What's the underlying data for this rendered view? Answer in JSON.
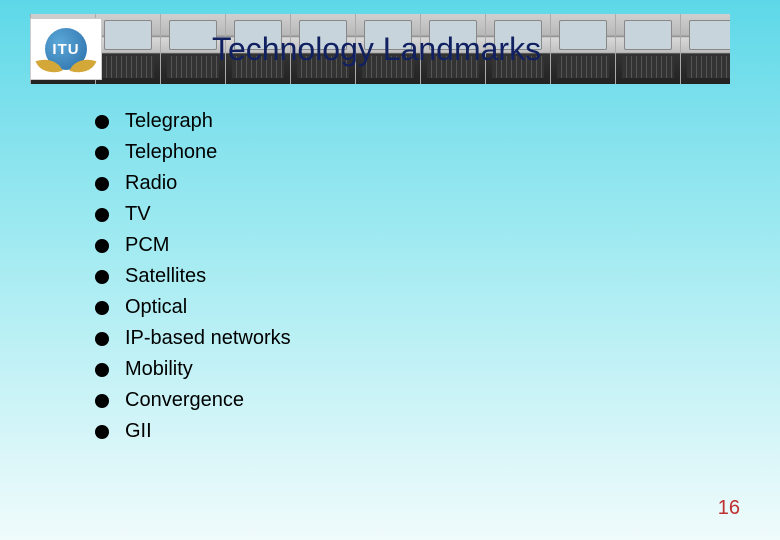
{
  "logo": {
    "text": "ITU"
  },
  "title": "Technology Landmarks",
  "bullets": [
    "Telegraph",
    "Telephone",
    "Radio",
    "TV",
    "PCM",
    "Satellites",
    "Optical",
    "IP-based networks",
    "Mobility",
    "Convergence",
    "GII"
  ],
  "page_number": "16",
  "styling": {
    "background_gradient": [
      "#5dd8e8",
      "#7de0ec",
      "#a8ecf2",
      "#d4f5f8",
      "#f0fbfc"
    ],
    "title_color": "#102060",
    "title_fontsize": 32,
    "bullet_color": "#000000",
    "bullet_marker_color": "#000000",
    "bullet_marker_size": 14,
    "bullet_fontsize": 20,
    "page_number_color": "#c03030",
    "page_number_fontsize": 20,
    "device_count": 11
  }
}
